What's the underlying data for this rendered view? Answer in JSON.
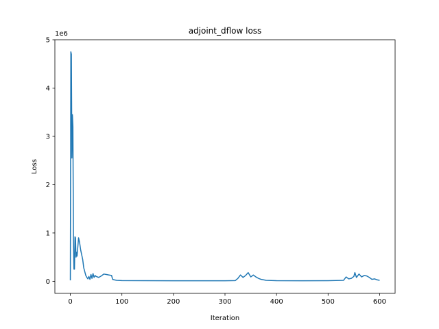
{
  "chart_data": {
    "type": "line",
    "title": "adjoint_dflow loss",
    "xlabel": "Iteration",
    "ylabel": "Loss",
    "y_multiplier_label": "1e6",
    "xlim": [
      -30,
      630
    ],
    "ylim": [
      -250000,
      5000000
    ],
    "x_ticks": [
      0,
      100,
      200,
      300,
      400,
      500,
      600
    ],
    "x_tick_labels": [
      "0",
      "100",
      "200",
      "300",
      "400",
      "500",
      "600"
    ],
    "y_ticks": [
      0,
      1000000,
      2000000,
      3000000,
      4000000,
      5000000
    ],
    "y_tick_labels": [
      "0",
      "1",
      "2",
      "3",
      "4",
      "5"
    ],
    "grid": false,
    "series": [
      {
        "color": "#1f77b4",
        "x": [
          0,
          1,
          2,
          3,
          4,
          5,
          6,
          7,
          8,
          9,
          10,
          11,
          12,
          13,
          14,
          16,
          18,
          20,
          22,
          24,
          26,
          28,
          30,
          32,
          34,
          36,
          38,
          40,
          42,
          44,
          46,
          48,
          50,
          55,
          60,
          65,
          70,
          75,
          80,
          82,
          85,
          90,
          100,
          150,
          200,
          250,
          300,
          320,
          325,
          330,
          335,
          340,
          345,
          350,
          355,
          360,
          365,
          370,
          380,
          400,
          450,
          500,
          530,
          535,
          540,
          545,
          550,
          552,
          555,
          560,
          565,
          570,
          575,
          580,
          585,
          590,
          595,
          600
        ],
        "values": [
          20000,
          4750000,
          4700000,
          2550000,
          3450000,
          3200000,
          900000,
          250000,
          250000,
          920000,
          900000,
          500000,
          600000,
          520000,
          650000,
          900000,
          800000,
          650000,
          550000,
          450000,
          280000,
          200000,
          120000,
          80000,
          50000,
          100000,
          40000,
          140000,
          60000,
          160000,
          80000,
          120000,
          100000,
          80000,
          110000,
          150000,
          140000,
          130000,
          120000,
          40000,
          30000,
          20000,
          15000,
          12000,
          10000,
          10000,
          10000,
          15000,
          60000,
          130000,
          80000,
          120000,
          180000,
          90000,
          130000,
          90000,
          60000,
          40000,
          20000,
          12000,
          10000,
          12000,
          20000,
          90000,
          50000,
          60000,
          100000,
          180000,
          80000,
          150000,
          90000,
          120000,
          110000,
          80000,
          40000,
          50000,
          30000,
          20000
        ]
      }
    ]
  }
}
